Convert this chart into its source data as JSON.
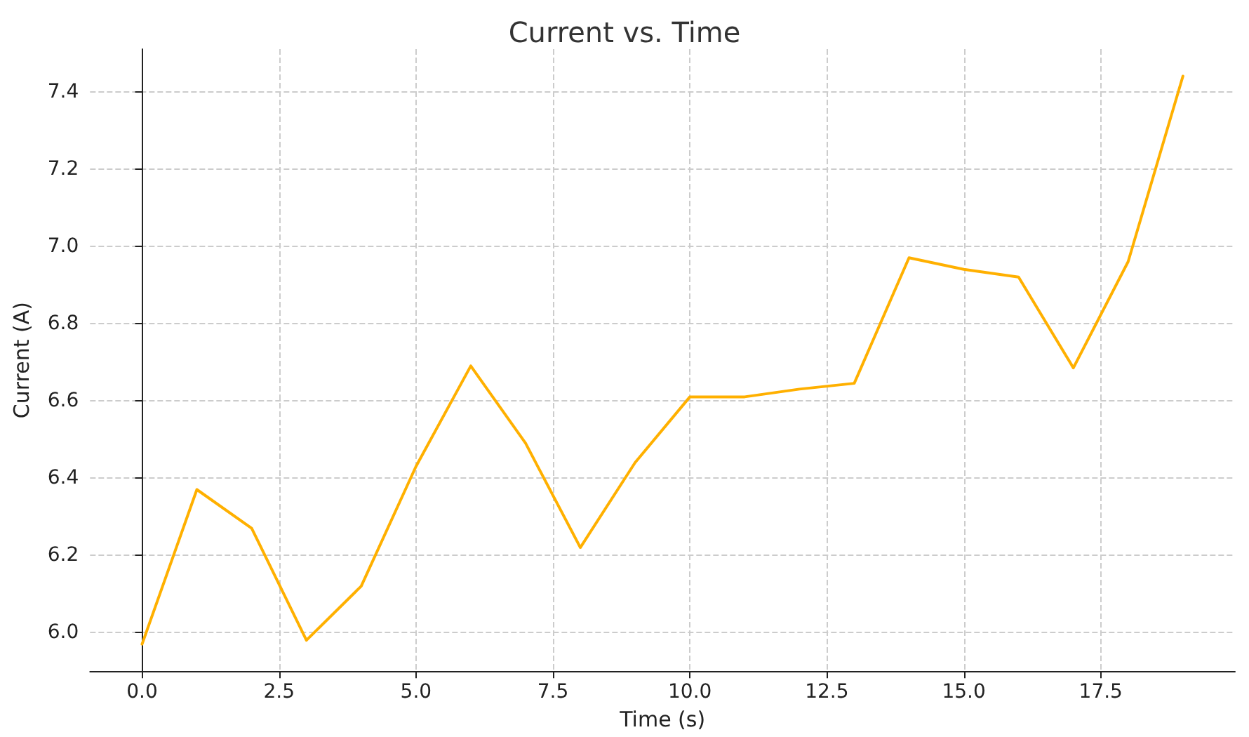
{
  "chart_data": {
    "type": "line",
    "title": "Current vs. Time",
    "xlabel": "Time (s)",
    "ylabel": "Current (A)",
    "x": [
      0,
      1,
      2,
      3,
      4,
      5,
      6,
      7,
      8,
      9,
      10,
      11,
      12,
      13,
      14,
      15,
      16,
      17,
      18,
      19
    ],
    "series": [
      {
        "color": "#ffb000",
        "values": [
          5.97,
          6.37,
          6.27,
          5.98,
          6.12,
          6.43,
          6.69,
          6.49,
          6.22,
          6.44,
          6.61,
          6.61,
          6.63,
          6.645,
          6.97,
          6.94,
          6.92,
          6.685,
          6.96,
          7.44
        ]
      }
    ],
    "xlim": [
      -0.95,
      19.95
    ],
    "xticks": [
      {
        "value": 0,
        "label": "0.0"
      },
      {
        "value": 2.5,
        "label": "2.5"
      },
      {
        "value": 5,
        "label": "5.0"
      },
      {
        "value": 7.5,
        "label": "7.5"
      },
      {
        "value": 10,
        "label": "10.0"
      },
      {
        "value": 12.5,
        "label": "12.5"
      },
      {
        "value": 15,
        "label": "15.0"
      },
      {
        "value": 17.5,
        "label": "17.5"
      }
    ],
    "ylim": [
      5.9,
      7.51
    ],
    "yticks": [
      {
        "value": 6,
        "label": "6.0"
      },
      {
        "value": 6.2,
        "label": "6.2"
      },
      {
        "value": 6.4,
        "label": "6.4"
      },
      {
        "value": 6.6,
        "label": "6.6"
      },
      {
        "value": 6.8,
        "label": "6.8"
      },
      {
        "value": 7,
        "label": "7.0"
      },
      {
        "value": 7.2,
        "label": "7.2"
      },
      {
        "value": 7.4,
        "label": "7.4"
      }
    ],
    "grid": true,
    "marker": "none",
    "line_style": "solid"
  }
}
